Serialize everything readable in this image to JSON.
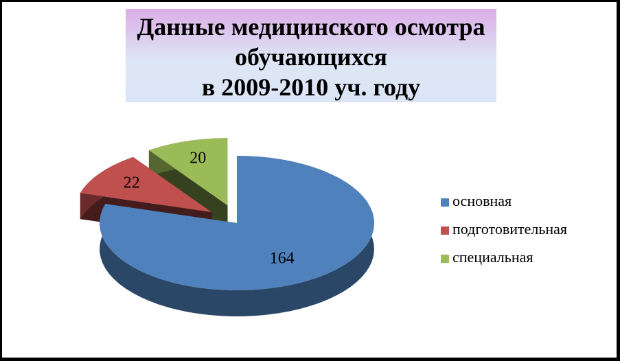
{
  "chart_data": {
    "type": "pie",
    "title": [
      "Данные медицинского осмотра",
      "обучающихся",
      "в 2009-2010 уч. году"
    ],
    "categories": [
      "основная",
      "подготовительная",
      "специальная"
    ],
    "values": [
      164,
      22,
      20
    ],
    "colors": [
      "#4f81bd",
      "#c0504d",
      "#9bbb59"
    ],
    "legend": "right"
  }
}
